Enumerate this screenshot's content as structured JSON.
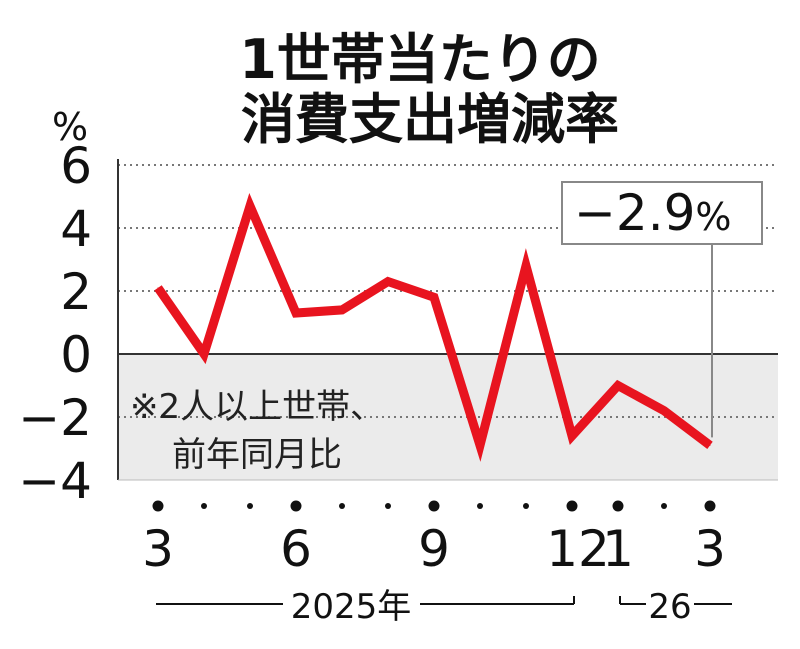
{
  "chart_data": {
    "type": "line",
    "title_lines": [
      "1世帯当たりの",
      "消費支出増減率"
    ],
    "unit": "%",
    "x": [
      "2025-03",
      "2025-04",
      "2025-05",
      "2025-06",
      "2025-07",
      "2025-08",
      "2025-09",
      "2025-10",
      "2025-11",
      "2025-12",
      "2026-01",
      "2026-02",
      "2026-03"
    ],
    "x_tick_labels": [
      "3",
      "",
      "",
      "6",
      "",
      "",
      "9",
      "",
      "",
      "12",
      "1",
      "",
      "3"
    ],
    "series": [
      {
        "values": [
          2.1,
          0.0,
          4.7,
          1.3,
          1.4,
          2.3,
          1.8,
          -2.9,
          2.8,
          -2.6,
          -1.0,
          -1.8,
          -2.9
        ],
        "color": "#e8141f"
      }
    ],
    "ylim": [
      -4,
      6
    ],
    "y_ticks": [
      "6",
      "4",
      "2",
      "0",
      "−2",
      "−4"
    ],
    "grid": "horizontal dotted",
    "negative_band_color": "#ebebeb",
    "note_lines": [
      "※2人以上世帯、",
      "前年同月比"
    ],
    "callout": {
      "text": "−2.9",
      "unit": "%",
      "target_index": 12
    },
    "periods": [
      {
        "label": "2025年",
        "from_index": 0,
        "to_index": 9
      },
      {
        "label": "26",
        "from_index": 10,
        "to_index": 12
      }
    ]
  }
}
